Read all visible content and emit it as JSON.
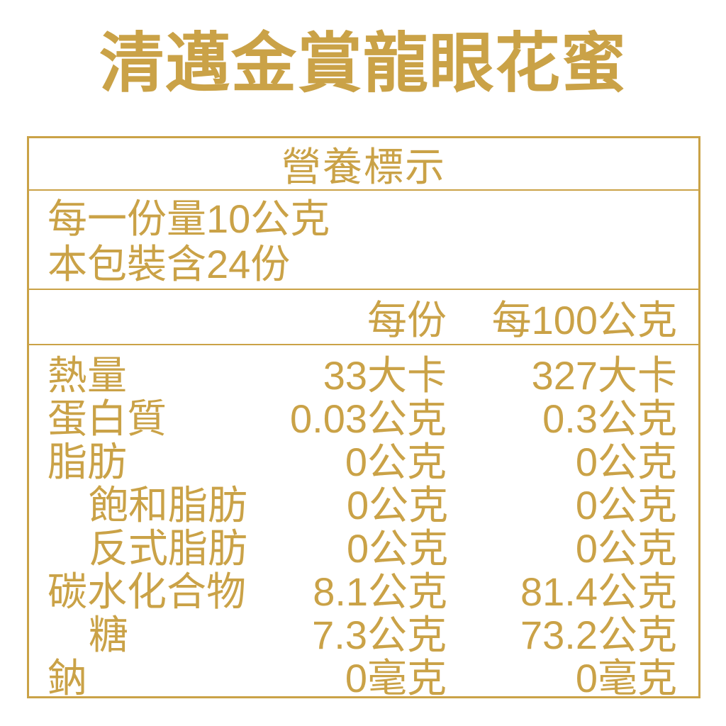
{
  "title": "清邁金賞龍眼花蜜",
  "colors": {
    "gold": "#CAA247",
    "background": "#FFFFFF"
  },
  "nutrition_label": {
    "header": "營養標示",
    "serving_line_1": "每一份量10公克",
    "serving_line_2": "本包裝含24份",
    "column_headers": {
      "per_serving": "每份",
      "per_100g": "每100公克"
    },
    "rows": [
      {
        "label": "熱量",
        "indent": false,
        "per_serving": "33大卡",
        "per_100g": "327大卡"
      },
      {
        "label": "蛋白質",
        "indent": false,
        "per_serving": "0.03公克",
        "per_100g": "0.3公克"
      },
      {
        "label": "脂肪",
        "indent": false,
        "per_serving": "0公克",
        "per_100g": "0公克"
      },
      {
        "label": "飽和脂肪",
        "indent": true,
        "per_serving": "0公克",
        "per_100g": "0公克"
      },
      {
        "label": "反式脂肪",
        "indent": true,
        "per_serving": "0公克",
        "per_100g": "0公克"
      },
      {
        "label": "碳水化合物",
        "indent": false,
        "per_serving": "8.1公克",
        "per_100g": "81.4公克"
      },
      {
        "label": "糖",
        "indent": true,
        "per_serving": "7.3公克",
        "per_100g": "73.2公克"
      },
      {
        "label": "鈉",
        "indent": false,
        "per_serving": "0毫克",
        "per_100g": "0毫克"
      }
    ]
  }
}
